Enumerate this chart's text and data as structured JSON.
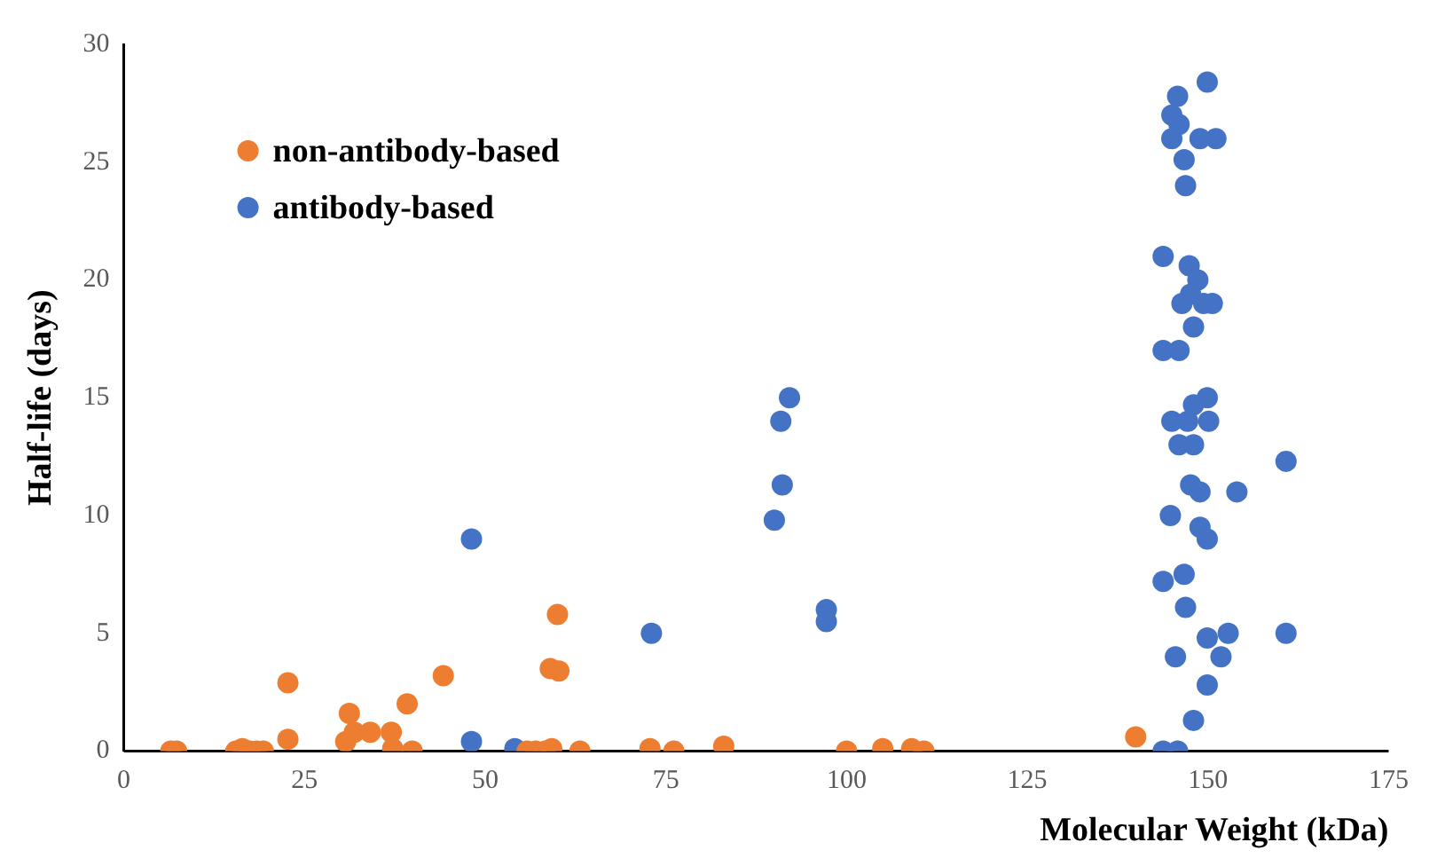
{
  "chart_data": {
    "type": "scatter",
    "xlabel": "Molecular Weight (kDa)",
    "ylabel": "Half-life (days)",
    "xlim": [
      0,
      175
    ],
    "xticks": [
      0,
      25,
      50,
      75,
      100,
      125,
      150,
      175
    ],
    "ylim": [
      0,
      30
    ],
    "yticks": [
      0,
      5,
      10,
      15,
      20,
      25,
      30
    ],
    "grid": false,
    "legend": "top left",
    "marker": "circle",
    "series": [
      {
        "name": "non-antibody-based",
        "color": "#ed7d31",
        "x": [
          6.5,
          7.3,
          15.5,
          16.4,
          17.4,
          18.4,
          19.3,
          22.7,
          22.7,
          30.7,
          31.2,
          31.9,
          34.1,
          37,
          37.2,
          39.2,
          39.9,
          44.2,
          55.8,
          57,
          58.3,
          59.2,
          59,
          60.2,
          60,
          63.1,
          72.8,
          76.1,
          82.9,
          83,
          100,
          105,
          109,
          110.7,
          140
        ],
        "values": [
          0,
          0,
          0,
          0.1,
          0,
          0,
          0,
          0.5,
          2.9,
          0.4,
          1.6,
          0.8,
          0.8,
          0.8,
          0.1,
          2,
          0,
          3.2,
          0,
          0,
          0,
          0.1,
          3.5,
          3.4,
          5.8,
          0,
          0.1,
          0,
          null,
          0.2,
          0,
          0.1,
          0.1,
          0,
          0.6
        ]
      },
      {
        "name": "antibody-based",
        "color": "#4472c4",
        "x": [
          48.1,
          48.1,
          54.1,
          73,
          90,
          90.9,
          91.1,
          92.1,
          97.2,
          97.2,
          149.9,
          145.8,
          145,
          146,
          145,
          148.9,
          151.1,
          146.7,
          146.9,
          143.8,
          147.4,
          148.6,
          146.4,
          147.6,
          149.4,
          150.6,
          148,
          143.8,
          146,
          149.9,
          148,
          145,
          147.2,
          149.1,
          150.1,
          146,
          148,
          160.8,
          147.6,
          148.9,
          154,
          144.8,
          148.9,
          149.9,
          143.8,
          146.7,
          146.9,
          149.9,
          152.8,
          160.8,
          149.9,
          151,
          151.8,
          145.5,
          149.9,
          148,
          143.8,
          145.8
        ],
        "values": [
          9,
          0.4,
          0.1,
          5,
          9.8,
          14,
          11.3,
          15,
          6,
          5.5,
          28.4,
          27.8,
          27,
          26.6,
          26,
          26,
          26,
          25.1,
          24,
          21,
          20.6,
          20,
          19,
          19.4,
          19,
          19,
          18,
          17,
          17,
          15,
          14.7,
          14,
          14,
          null,
          14,
          13,
          13,
          12.3,
          11.3,
          11,
          11,
          10,
          9.5,
          9,
          7.2,
          7.5,
          6.1,
          null,
          5,
          5,
          4.8,
          null,
          4,
          4,
          2.8,
          1.3,
          0,
          0
        ]
      }
    ]
  }
}
